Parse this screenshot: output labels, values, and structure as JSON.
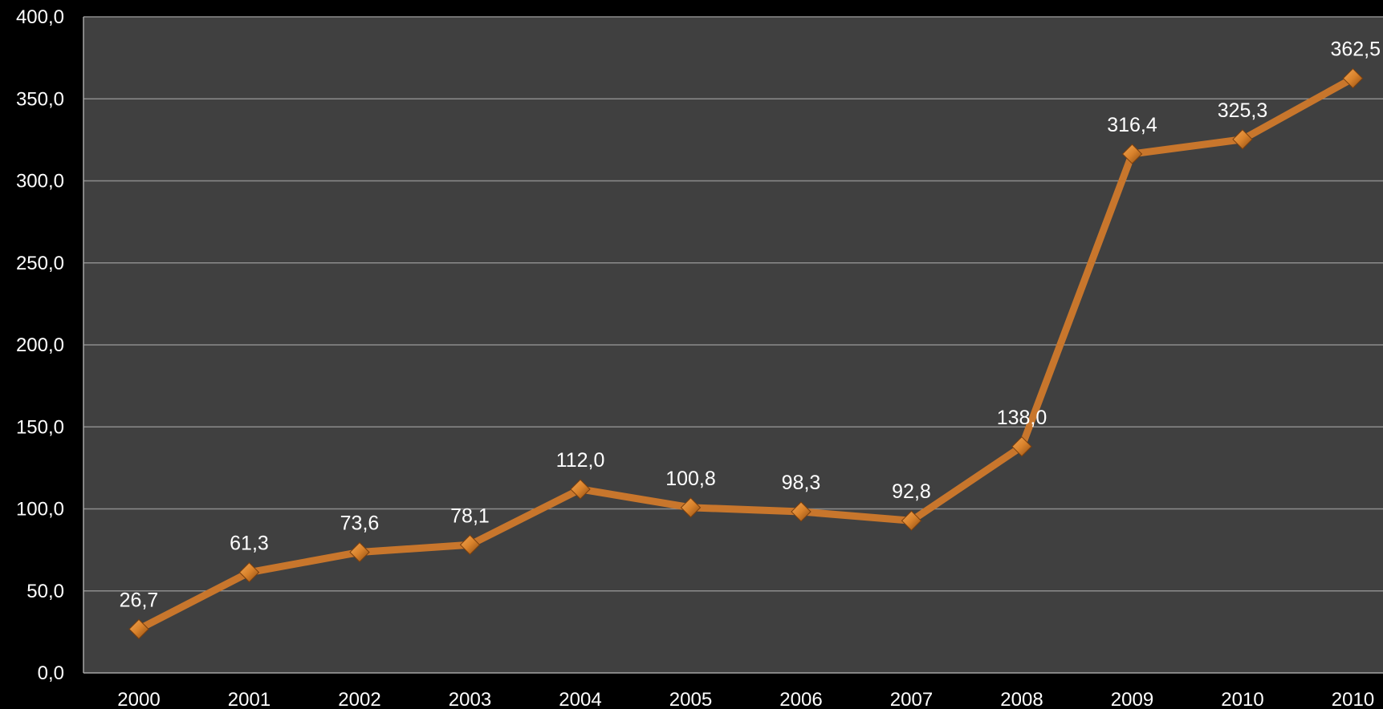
{
  "chart_data": {
    "type": "line",
    "title": "",
    "xlabel": "",
    "ylabel": "",
    "categories": [
      "2000",
      "2001",
      "2002",
      "2003",
      "2004",
      "2005",
      "2006",
      "2007",
      "2008",
      "2009",
      "2010",
      "2010"
    ],
    "series": [
      {
        "values": [
          26.7,
          61.3,
          73.6,
          78.1,
          112.0,
          100.8,
          98.3,
          92.8,
          138.0,
          316.4,
          325.3,
          362.5
        ],
        "labels": [
          "26,7",
          "61,3",
          "73,6",
          "78,1",
          "112,0",
          "100,8",
          "98,3",
          "92,8",
          "138,0",
          "316,4",
          "325,3",
          "362,5"
        ]
      }
    ],
    "ylim": [
      0,
      400
    ],
    "yticks": [
      0,
      50,
      100,
      150,
      200,
      250,
      300,
      350,
      400
    ],
    "ytick_labels": [
      "0,0",
      "50,0",
      "100,0",
      "150,0",
      "200,0",
      "250,0",
      "300,0",
      "350,0",
      "400,0"
    ],
    "grid": true,
    "legend": "none",
    "marker": "diamond",
    "colors": {
      "page_background": "#000000",
      "plot_background": "#404040",
      "gridline": "#8c8c8c",
      "axis": "#a6a6a6",
      "line": "#c8762c",
      "marker": "#d9822b",
      "text": "#ffffff"
    }
  }
}
